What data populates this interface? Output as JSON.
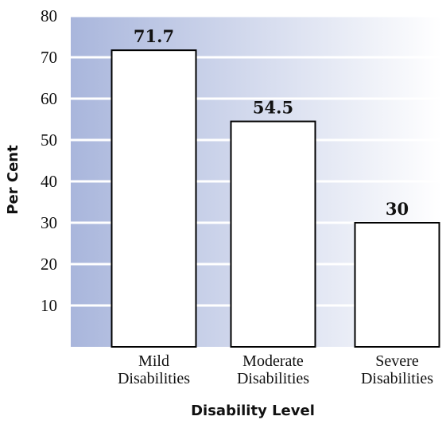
{
  "chart_data": {
    "type": "bar",
    "categories": [
      "Mild Disabilities",
      "Moderate Disabilities",
      "Severe Disabilities"
    ],
    "category_lines": [
      [
        "Mild",
        "Disabilities"
      ],
      [
        "Moderate",
        "Disabilities"
      ],
      [
        "Severe",
        "Disabilities"
      ]
    ],
    "values": [
      71.7,
      54.5,
      30
    ],
    "value_labels": [
      "71.7",
      "54.5",
      "30"
    ],
    "title": "",
    "xlabel": "Disability Level",
    "ylabel": "Per Cent",
    "ylim": [
      0,
      80
    ],
    "yticks": [
      10,
      20,
      30,
      40,
      50,
      60,
      70,
      80
    ],
    "grid": true,
    "colors": {
      "background_gradient_start": "#a9b6dc",
      "background_gradient_end": "#ffffff",
      "bar_fill": "#ffffff",
      "bar_stroke": "#000000",
      "gridline": "#ffffff"
    }
  }
}
